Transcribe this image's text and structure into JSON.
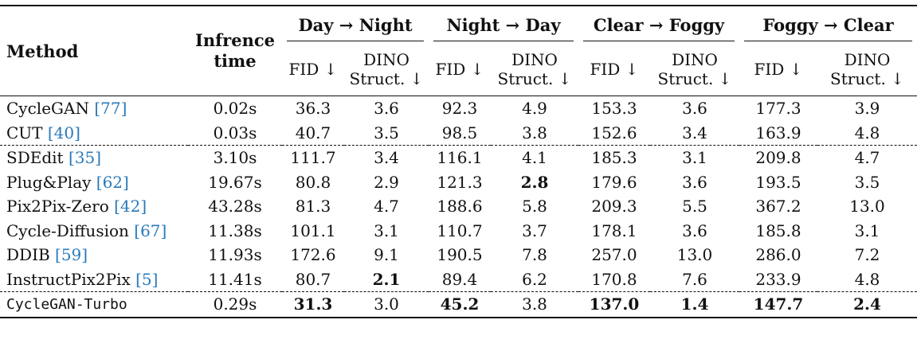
{
  "header": {
    "method": "Method",
    "time_line1": "Infrence",
    "time_line2": "time",
    "groups": [
      "Day → Night",
      "Night → Day",
      "Clear → Foggy",
      "Foggy → Clear"
    ],
    "fid": "FID ↓",
    "dino_line1": "DINO",
    "dino_line2": "Struct. ↓"
  },
  "rows": [
    {
      "name": "CycleGAN ",
      "cite": "[77]",
      "close": "",
      "time": "0.02s",
      "values": [
        "36.3",
        "3.6",
        "92.3",
        "4.9",
        "153.3",
        "3.6",
        "177.3",
        "3.9"
      ]
    },
    {
      "name": "CUT ",
      "cite": "[40]",
      "close": "",
      "time": "0.03s",
      "values": [
        "40.7",
        "3.5",
        "98.5",
        "3.8",
        "152.6",
        "3.4",
        "163.9",
        "4.8"
      ]
    },
    {
      "name": "SDEdit ",
      "cite": "[35]",
      "close": "",
      "time": "3.10s",
      "values": [
        "111.7",
        "3.4",
        "116.1",
        "4.1",
        "185.3",
        "3.1",
        "209.8",
        "4.7"
      ]
    },
    {
      "name": "Plug&Play ",
      "cite": "[62]",
      "close": "",
      "time": "19.67s",
      "values": [
        "80.8",
        "2.9",
        "121.3",
        "2.8",
        "179.6",
        "3.6",
        "193.5",
        "3.5"
      ]
    },
    {
      "name": "Pix2Pix-Zero ",
      "cite": "[42]",
      "close": "",
      "time": "43.28s",
      "values": [
        "81.3",
        "4.7",
        "188.6",
        "5.8",
        "209.3",
        "5.5",
        "367.2",
        "13.0"
      ]
    },
    {
      "name": "Cycle-Diffusion ",
      "cite": "[67]",
      "close": "",
      "time": "11.38s",
      "values": [
        "101.1",
        "3.1",
        "110.7",
        "3.7",
        "178.1",
        "3.6",
        "185.8",
        "3.1"
      ]
    },
    {
      "name": "DDIB ",
      "cite": "[59]",
      "close": "",
      "time": "11.93s",
      "values": [
        "172.6",
        "9.1",
        "190.5",
        "7.8",
        "257.0",
        "13.0",
        "286.0",
        "7.2"
      ]
    },
    {
      "name": "InstructPix2Pix ",
      "cite": "[5]",
      "close": "",
      "time": "11.41s",
      "values": [
        "80.7",
        "2.1",
        "89.4",
        "6.2",
        "170.8",
        "7.6",
        "233.9",
        "4.8"
      ]
    },
    {
      "name": "CycleGAN-Turbo",
      "cite": "",
      "close": "",
      "time": "0.29s",
      "values": [
        "31.3",
        "3.0",
        "45.2",
        "3.8",
        "137.0",
        "1.4",
        "147.7",
        "2.4"
      ]
    }
  ]
}
